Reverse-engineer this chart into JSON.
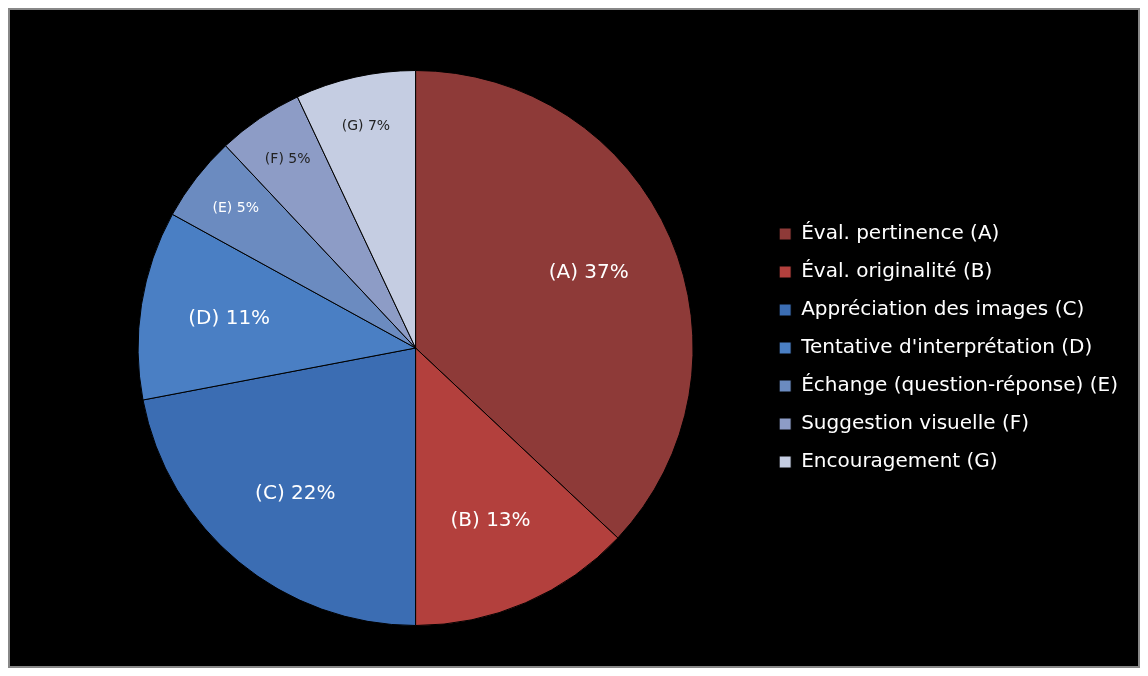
{
  "chart_data": {
    "type": "pie",
    "categories": [
      "Éval. pertinence (A)",
      "Éval. originalité (B)",
      "Appréciation des images (C)",
      "Tentative d'interprétation (D)",
      "Échange (question-réponse) (E)",
      "Suggestion visuelle (F)",
      "Encouragement (G)"
    ],
    "values": [
      37,
      13,
      22,
      11,
      5,
      5,
      7
    ],
    "value_labels": [
      "(A) 37%",
      "(B) 13%",
      "(C) 22%",
      "(D) 11%",
      "(E) 5%",
      "(F) 5%",
      "(G) 7%"
    ],
    "colors": [
      "#8e3a38",
      "#b3403d",
      "#3b6db3",
      "#4a7fc4",
      "#6b8bc0",
      "#8d9cc6",
      "#c5cde2"
    ],
    "legend": "right"
  }
}
